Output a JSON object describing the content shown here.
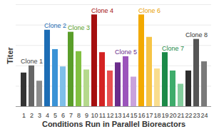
{
  "chart_data": {
    "type": "bar",
    "categories": [
      "1",
      "2",
      "3",
      "4",
      "5",
      "6",
      "7",
      "8",
      "9",
      "10",
      "11",
      "12",
      "13",
      "14",
      "15",
      "16",
      "17",
      "18",
      "19",
      "20",
      "21",
      "22",
      "23",
      "24"
    ],
    "values": [
      3.3,
      4.0,
      2.5,
      7.5,
      5.6,
      3.9,
      7.3,
      5.4,
      3.6,
      9.0,
      5.3,
      3.5,
      4.3,
      4.9,
      2.9,
      9.0,
      6.8,
      3.7,
      5.3,
      3.5,
      2.2,
      3.5,
      6.6,
      4.4
    ],
    "colors": [
      "#333333",
      "#666666",
      "#8c8c8c",
      "#1d6db5",
      "#3b93d6",
      "#7fbfe9",
      "#5a9e2a",
      "#82c042",
      "#b5d98c",
      "#a50f0f",
      "#d42323",
      "#e85050",
      "#6b2d8c",
      "#9b54bb",
      "#c9a3dd",
      "#f2a900",
      "#f6c445",
      "#f9dd8e",
      "#1b8a48",
      "#3eac6b",
      "#84cd9d",
      "#2e2e2e",
      "#555555",
      "#7a7a7a"
    ],
    "xlabel": "Conditions Run in Parallel Bioreactors",
    "ylabel": "Titer",
    "ylim": [
      0,
      10
    ],
    "yticks": [
      0,
      2,
      4,
      6,
      8,
      10
    ],
    "grid": true,
    "tick_labels": "x",
    "annotations": [
      {
        "text": "Clone 1",
        "x": "2",
        "color": "#444444"
      },
      {
        "text": "Clone 2",
        "x": "5",
        "color": "#1d6db5"
      },
      {
        "text": "Clone 3",
        "x": "8",
        "color": "#5a9e2a"
      },
      {
        "text": "Clone 4",
        "x": "11",
        "color": "#a50f0f"
      },
      {
        "text": "Clone 5",
        "x": "14",
        "color": "#6b2d8c"
      },
      {
        "text": "Clone 6",
        "x": "17",
        "color": "#e8a000"
      },
      {
        "text": "Clone 7",
        "x": "20",
        "color": "#1b8a48"
      },
      {
        "text": "Clone 8",
        "x": "23",
        "color": "#333333"
      }
    ]
  }
}
